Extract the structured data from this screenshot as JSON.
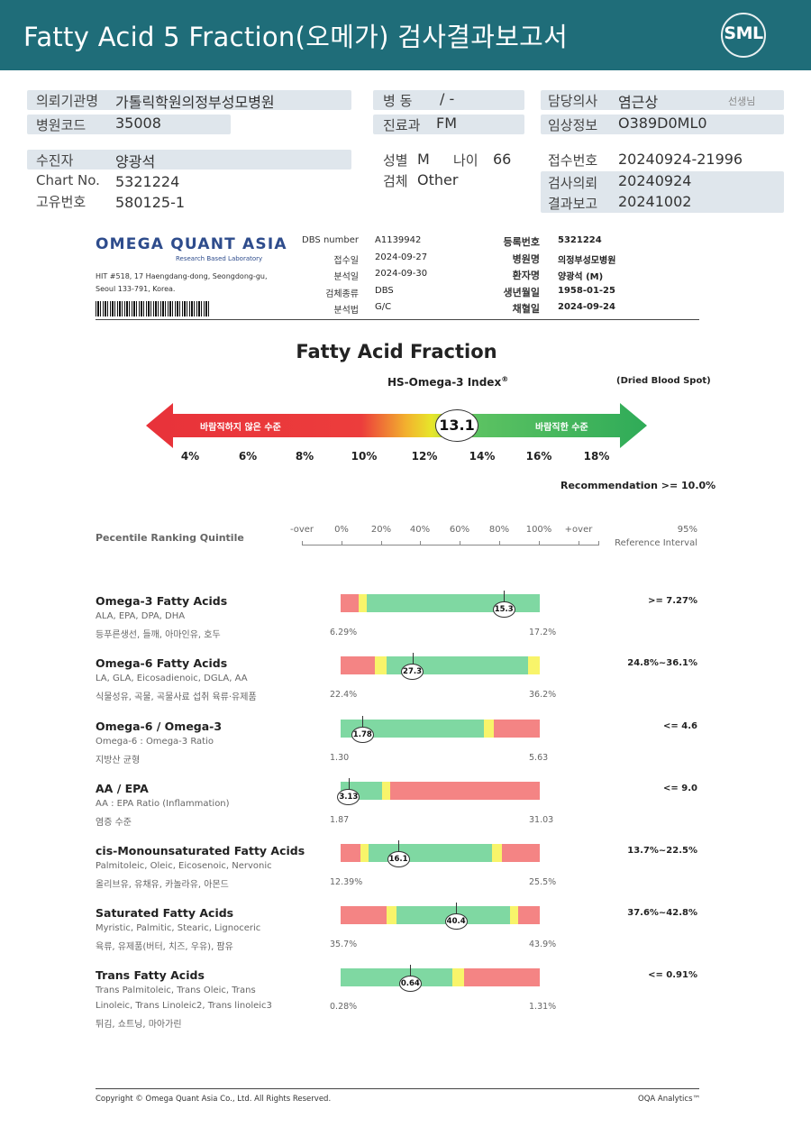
{
  "header": {
    "title": "Fatty Acid 5 Fraction(오메가) 검사결과보고서",
    "logo": "SML"
  },
  "info": {
    "hospital_label": "의뢰기관명",
    "hospital_value": "가톨릭학원의정부성모병원",
    "code_label": "병원코드",
    "code_value": "35008",
    "ward_label": "병 동",
    "ward_value": "/ -",
    "dept_label": "진료과",
    "dept_value": "FM",
    "doctor_label": "담당의사",
    "doctor_value": "염근상",
    "doctor_suffix": "선생님",
    "clinical_label": "임상정보",
    "clinical_value": "O389D0ML0",
    "patient_label": "수진자",
    "patient_value": "양광석",
    "chart_label": "Chart No.",
    "chart_value": "5321224",
    "uid_label": "고유번호",
    "uid_value": "580125-1",
    "sex_label": "성별",
    "sex_value": "M",
    "age_label": "나이",
    "age_value": "66",
    "specimen_label": "검체",
    "specimen_value": "Other",
    "reception_label": "접수번호",
    "reception_value": "20240924-21996",
    "request_label": "검사의뢰",
    "request_value": "20240924",
    "report_label": "결과보고",
    "report_value": "20241002"
  },
  "lab": {
    "logo": "OMEGA QUANT ASIA",
    "logo_sub": "Research Based Laboratory",
    "address1": "HIT #518, 17 Haengdang-dong, Seongdong-gu,",
    "address2": "Seoul 133-791, Korea.",
    "meta_left": [
      {
        "label": "DBS number",
        "value": "A1139942"
      },
      {
        "label": "접수일",
        "value": "2024-09-27"
      },
      {
        "label": "분석일",
        "value": "2024-09-30"
      },
      {
        "label": "검체종류",
        "value": "DBS"
      },
      {
        "label": "분석법",
        "value": "G/C"
      }
    ],
    "meta_right": [
      {
        "label": "등록번호",
        "value": "5321224"
      },
      {
        "label": "병원명",
        "value": "의정부성모병원"
      },
      {
        "label": "환자명",
        "value": "양광석 (M)"
      },
      {
        "label": "생년월일",
        "value": "1958-01-25"
      },
      {
        "label": "채혈일",
        "value": "2024-09-24"
      }
    ]
  },
  "index": {
    "section_title": "Fatty Acid Fraction",
    "title": "HS-Omega-3 Index",
    "reg_mark": "®",
    "note": "(Dried Blood Spot)",
    "left_label": "바람직하지 않은 수준",
    "right_label": "바람직한 수준",
    "value": "13.1",
    "value_num": 13.1,
    "ticks": [
      "4%",
      "6%",
      "8%",
      "10%",
      "12%",
      "14%",
      "16%",
      "18%"
    ],
    "recommendation": "Recommendation  >= 10.0%"
  },
  "percentile": {
    "title": "Pecentile Ranking Quintile",
    "ticks": [
      "-over",
      "0%",
      "20%",
      "40%",
      "60%",
      "80%",
      "100%",
      "+over"
    ],
    "ref_header1": "95%",
    "ref_header2": "Reference Interval"
  },
  "colors": {
    "red": "#f48484",
    "yellow": "#f8f46a",
    "green": "#7fd8a2",
    "header": "#1f6d79"
  },
  "fatty_acids": [
    {
      "name": "Omega-3 Fatty Acids",
      "sub": "ALA, EPA, DPA, DHA",
      "kor": "등푸른생선, 들깨, 아마인유, 호두",
      "value": "15.3",
      "min": "6.29%",
      "max": "17.2%",
      "ref": ">= 7.27%"
    },
    {
      "name": "Omega-6 Fatty Acids",
      "sub": "LA, GLA, Eicosadienoic, DGLA, AA",
      "kor": "식물성유, 곡물, 곡물사료 섭취 육류·유제품",
      "value": "27.3",
      "min": "22.4%",
      "max": "36.2%",
      "ref": "24.8%~36.1%"
    },
    {
      "name": "Omega-6 / Omega-3",
      "sub": "Omega-6 : Omega-3 Ratio",
      "kor": "지방산 균형",
      "value": "1.78",
      "min": "1.30",
      "max": "5.63",
      "ref": "<= 4.6"
    },
    {
      "name": "AA / EPA",
      "sub": "AA : EPA Ratio (Inflammation)",
      "kor": "염증 수준",
      "value": "3.13",
      "min": "1.87",
      "max": "31.03",
      "ref": "<= 9.0"
    },
    {
      "name": "cis-Monounsaturated Fatty Acids",
      "sub": "Palmitoleic, Oleic, Eicosenoic, Nervonic",
      "kor": "올리브유, 유채유, 카놀라유, 아몬드",
      "value": "16.1",
      "min": "12.39%",
      "max": "25.5%",
      "ref": "13.7%~22.5%"
    },
    {
      "name": "Saturated Fatty Acids",
      "sub": "Myristic, Palmitic, Stearic, Lignoceric",
      "kor": "육류, 유제품(버터, 치즈, 우유), 팜유",
      "value": "40.4",
      "min": "35.7%",
      "max": "43.9%",
      "ref": "37.6%~42.8%"
    },
    {
      "name": "Trans Fatty Acids",
      "sub": "Trans Palmitoleic, Trans Oleic, Trans",
      "sub2": "Linoleic, Trans Linoleic2, Trans linoleic3",
      "kor": "튀김, 쇼트닝, 마아가린",
      "value": "0.64",
      "min": "0.28%",
      "max": "1.31%",
      "ref": "<= 0.91%"
    }
  ],
  "footer": {
    "copyright": "Copyright © Omega Quant Asia Co., Ltd.  All Rights Reserved.",
    "brand": "OQA Analytics™"
  }
}
